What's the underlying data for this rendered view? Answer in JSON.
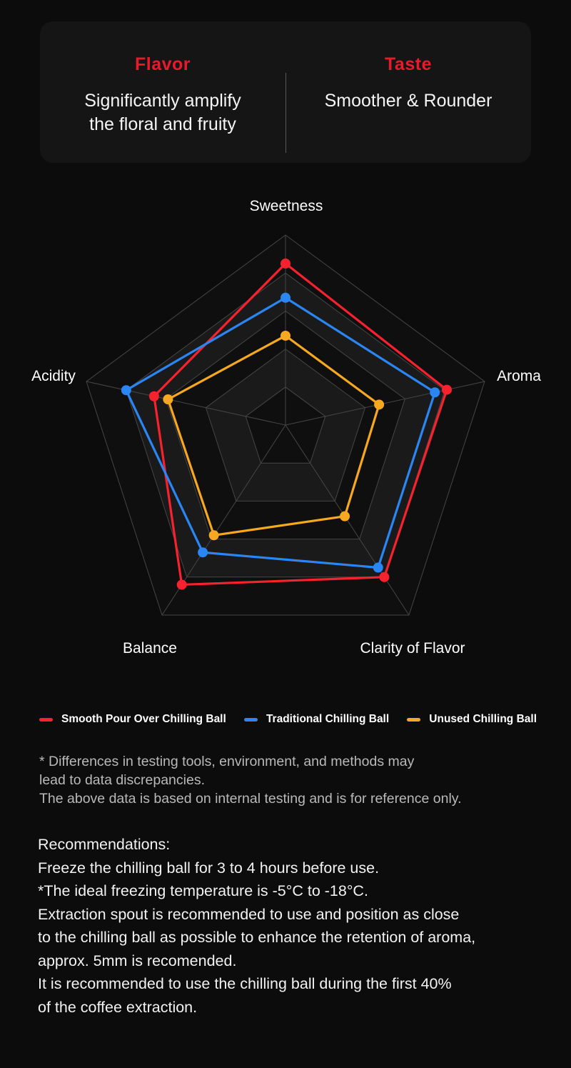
{
  "page": {
    "background": "#0c0c0c"
  },
  "header_card": {
    "title_color": "#e81a2c",
    "left": {
      "title": "Flavor",
      "lines": [
        "Significantly amplify",
        "the floral and fruity"
      ]
    },
    "right": {
      "title": "Taste",
      "lines": [
        "Smoother & Rounder"
      ]
    }
  },
  "chart_data": {
    "type": "radar",
    "title": "",
    "axes": [
      "Sweetness",
      "Aroma",
      "Clarity of Flavor",
      "Balance",
      "Acidity"
    ],
    "max": 5,
    "rings": 5,
    "grid": {
      "line_color": "#464646",
      "band_dark": "#0f0f0f",
      "band_light": "#1a1a1a"
    },
    "legend_position": "bottom",
    "series": [
      {
        "name": "Smooth Pour Over Chilling Ball",
        "color": "#f8222f",
        "values": [
          4.25,
          4.05,
          4.0,
          4.2,
          3.3
        ]
      },
      {
        "name": "Traditional Chilling Ball",
        "color": "#2a86f5",
        "values": [
          3.35,
          3.75,
          3.75,
          3.35,
          4.0
        ]
      },
      {
        "name": "Unused Chilling Ball",
        "color": "#f6a820",
        "values": [
          2.35,
          2.35,
          2.4,
          2.9,
          2.95
        ]
      }
    ]
  },
  "disclaimer": {
    "lines": [
      "* Differences in testing tools, environment, and methods may",
      "lead to data discrepancies.",
      "The above data is based on internal testing and is for reference only."
    ]
  },
  "recommendations": {
    "title": "Recommendations:",
    "lines": [
      "Freeze the chilling ball for 3 to 4 hours before use.",
      "*The ideal freezing temperature is -5°C to -18°C.",
      "Extraction spout is recommended to use and position as close",
      "to the chilling ball as possible to enhance the retention of aroma,",
      "approx. 5mm is recomended.",
      "It is recommended to use the chilling ball during the first 40%",
      "of the coffee extraction."
    ]
  }
}
